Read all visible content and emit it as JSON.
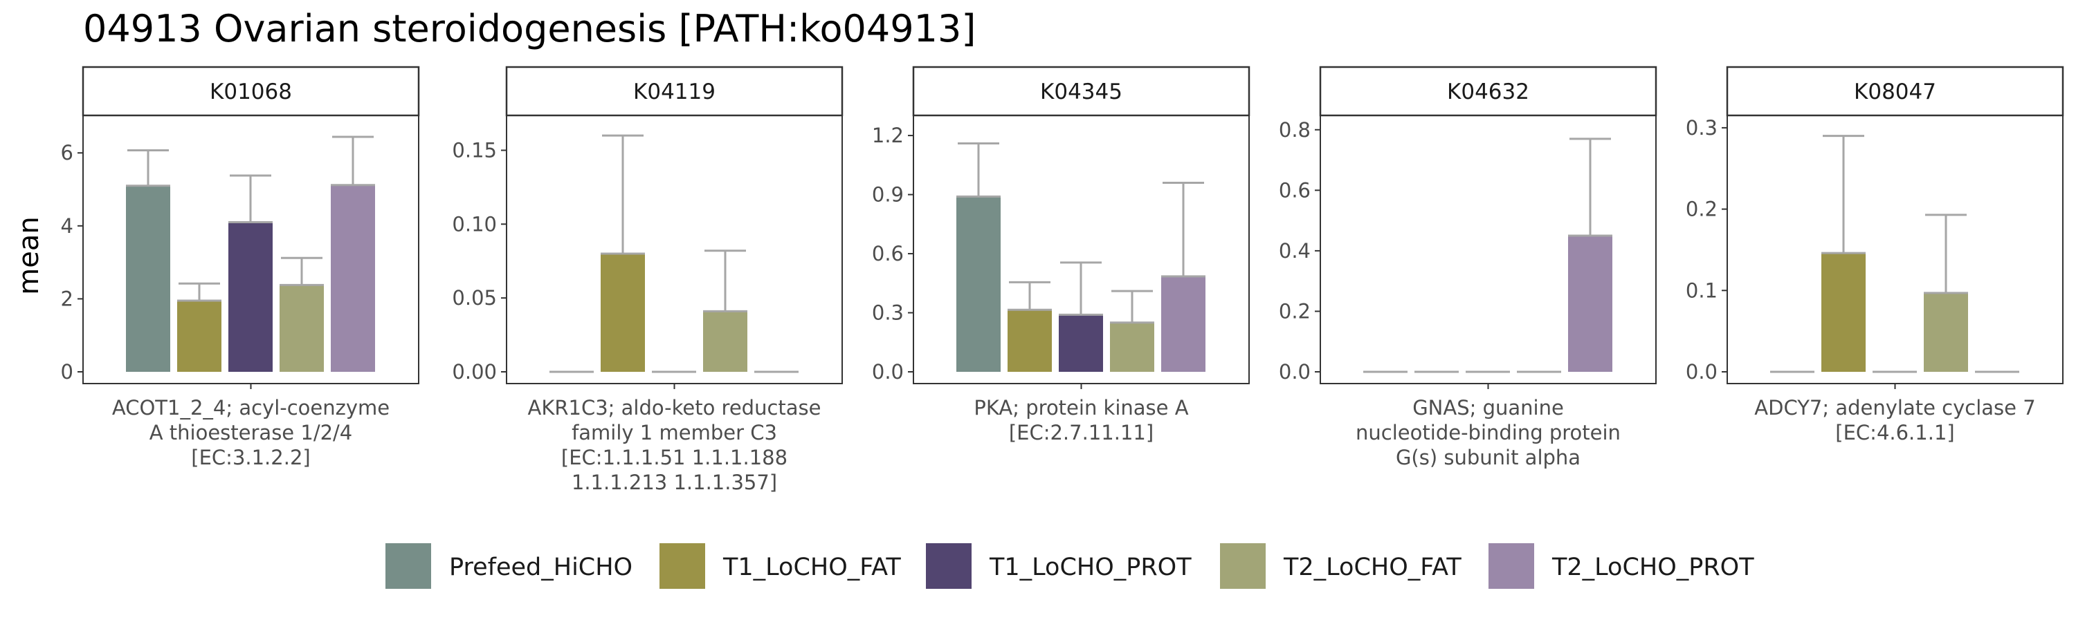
{
  "chart_data": {
    "type": "bar",
    "title": "04913 Ovarian steroidogenesis [PATH:ko04913]",
    "ylabel": "mean",
    "legend_position": "bottom",
    "grid": false,
    "series": [
      {
        "name": "Prefeed_HiCHO",
        "color": "#778e88"
      },
      {
        "name": "T1_LoCHO_FAT",
        "color": "#9b9347"
      },
      {
        "name": "T1_LoCHO_PROT",
        "color": "#524570"
      },
      {
        "name": "T2_LoCHO_FAT",
        "color": "#a2a577"
      },
      {
        "name": "T2_LoCHO_PROT",
        "color": "#9a88a9"
      }
    ],
    "panels": [
      {
        "strip": "K01068",
        "xlabel": [
          "ACOT1_2_4; acyl-coenzyme",
          "A thioesterase 1/2/4",
          "[EC:3.1.2.2]"
        ],
        "ylim": [
          0,
          6.8
        ],
        "yticks": [
          0,
          2,
          4,
          6
        ],
        "ytick_labels": [
          "0",
          "2",
          "4",
          "6"
        ],
        "values": [
          5.1,
          1.95,
          4.1,
          2.38,
          5.12
        ],
        "errors": [
          6.07,
          2.42,
          5.38,
          3.12,
          6.44
        ]
      },
      {
        "strip": "K04119",
        "xlabel": [
          "AKR1C3; aldo-keto reductase",
          "family 1 member C3",
          "[EC:1.1.1.51 1.1.1.188",
          "1.1.1.213 1.1.1.357]"
        ],
        "ylim": [
          0,
          0.168
        ],
        "yticks": [
          0,
          0.05,
          0.1,
          0.15
        ],
        "ytick_labels": [
          "0.00",
          "0.05",
          "0.10",
          "0.15"
        ],
        "values": [
          0,
          0.08,
          0,
          0.041,
          0
        ],
        "errors": [
          null,
          0.16,
          null,
          0.082,
          null
        ]
      },
      {
        "strip": "K04345",
        "xlabel": [
          "PKA; protein kinase A",
          "[EC:2.7.11.11]"
        ],
        "ylim": [
          0,
          1.26
        ],
        "yticks": [
          0,
          0.3,
          0.6,
          0.9,
          1.2
        ],
        "ytick_labels": [
          "0.0",
          "0.3",
          "0.6",
          "0.9",
          "1.2"
        ],
        "values": [
          0.89,
          0.315,
          0.29,
          0.25,
          0.485
        ],
        "errors": [
          1.16,
          0.455,
          0.555,
          0.41,
          0.96
        ]
      },
      {
        "strip": "K04632",
        "xlabel": [
          "GNAS; guanine",
          "nucleotide-binding protein",
          "G(s) subunit alpha"
        ],
        "ylim": [
          0,
          0.82
        ],
        "yticks": [
          0,
          0.2,
          0.4,
          0.6,
          0.8
        ],
        "ytick_labels": [
          "0.0",
          "0.2",
          "0.4",
          "0.6",
          "0.8"
        ],
        "values": [
          0,
          0,
          0,
          0,
          0.45
        ],
        "errors": [
          null,
          null,
          null,
          null,
          0.77
        ]
      },
      {
        "strip": "K08047",
        "xlabel": [
          "ADCY7; adenylate cyclase 7",
          "[EC:4.6.1.1]"
        ],
        "ylim": [
          0,
          0.305
        ],
        "yticks": [
          0,
          0.1,
          0.2,
          0.3
        ],
        "ytick_labels": [
          "0.0",
          "0.1",
          "0.2",
          "0.3"
        ],
        "values": [
          0,
          0.146,
          0,
          0.097,
          0
        ],
        "errors": [
          null,
          0.29,
          null,
          0.193,
          null
        ]
      }
    ]
  }
}
